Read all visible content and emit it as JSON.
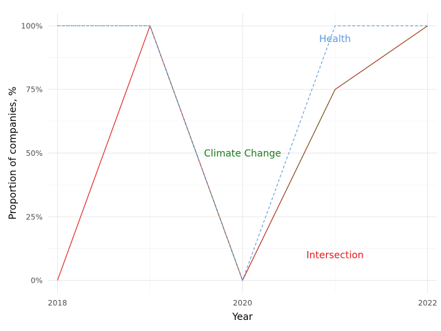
{
  "chart_data": {
    "type": "line",
    "xlabel": "Year",
    "ylabel": "Proportion of companies, %",
    "x": [
      2018,
      2019,
      2020,
      2021,
      2022
    ],
    "xlim": [
      2017.9,
      2022.1
    ],
    "ylim": [
      -0.05,
      1.05
    ],
    "x_ticks": [
      2018,
      2020,
      2022
    ],
    "x_tick_labels": [
      "2018",
      "2020",
      "2022"
    ],
    "y_ticks": [
      0,
      0.25,
      0.5,
      0.75,
      1.0
    ],
    "y_tick_labels": [
      "0%",
      "25%",
      "50%",
      "75%",
      "100%"
    ],
    "grid": true,
    "series": [
      {
        "name": "Intersection",
        "values": [
          0,
          1.0,
          0,
          0.75,
          1.0
        ],
        "color": "#e41a1c",
        "dash": "solid",
        "label_x": 2021.0,
        "label_y": 0.1
      },
      {
        "name": "Climate Change",
        "values": [
          1.0,
          1.0,
          0,
          0.75,
          1.0
        ],
        "color": "#1b7e1b",
        "dash": "dotted",
        "label_x": 2020.0,
        "label_y": 0.5
      },
      {
        "name": "Health",
        "values": [
          1.0,
          1.0,
          0,
          1.0,
          1.0
        ],
        "color": "#5b9be0",
        "dash": "dashed",
        "label_x": 2021.0,
        "label_y": 0.95
      }
    ]
  }
}
